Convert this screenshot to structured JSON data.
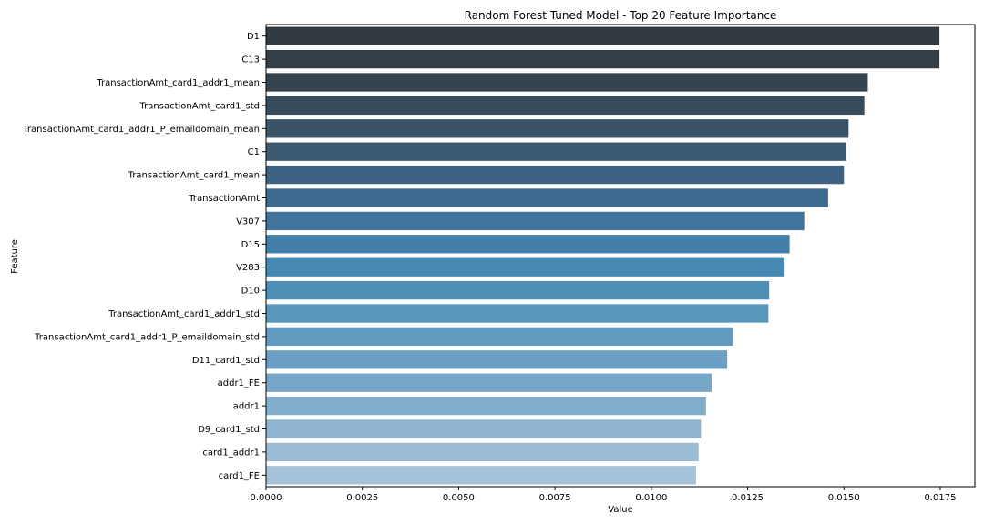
{
  "chart_data": {
    "type": "bar",
    "orientation": "horizontal",
    "title": "Random Forest Tuned Model - Top 20 Feature Importance",
    "xlabel": "Value",
    "ylabel": "Feature",
    "xlim": [
      0,
      0.0184
    ],
    "xticks": [
      0.0,
      0.0025,
      0.005,
      0.0075,
      0.01,
      0.0125,
      0.015,
      0.0175
    ],
    "xtick_labels": [
      "0.0000",
      "0.0025",
      "0.0050",
      "0.0075",
      "0.0100",
      "0.0125",
      "0.0150",
      "0.0175"
    ],
    "grid": false,
    "categories": [
      "D1",
      "C13",
      "TransactionAmt_card1_addr1_mean",
      "TransactionAmt_card1_std",
      "TransactionAmt_card1_addr1_P_emaildomain_mean",
      "C1",
      "TransactionAmt_card1_mean",
      "TransactionAmt",
      "V307",
      "D15",
      "V283",
      "D10",
      "TransactionAmt_card1_addr1_std",
      "TransactionAmt_card1_addr1_P_emaildomain_std",
      "D11_card1_std",
      "addr1_FE",
      "addr1",
      "D9_card1_std",
      "card1_addr1",
      "card1_FE"
    ],
    "values": [
      0.01748,
      0.01748,
      0.01562,
      0.01553,
      0.01512,
      0.01506,
      0.015,
      0.01459,
      0.01397,
      0.01359,
      0.01346,
      0.01306,
      0.01304,
      0.01212,
      0.01197,
      0.01157,
      0.01142,
      0.01129,
      0.01123,
      0.01116
    ],
    "colors": [
      "#323a41",
      "#333e47",
      "#35444f",
      "#374b5a",
      "#3a5266",
      "#3c5a72",
      "#3d6281",
      "#3f6a8f",
      "#40749d",
      "#4280ab",
      "#4689b2",
      "#4e8fb6",
      "#5896bb",
      "#6299bf",
      "#6b9fc3",
      "#77a6c8",
      "#83adcc",
      "#8eb4d1",
      "#9abcd5",
      "#a4c3da"
    ]
  }
}
